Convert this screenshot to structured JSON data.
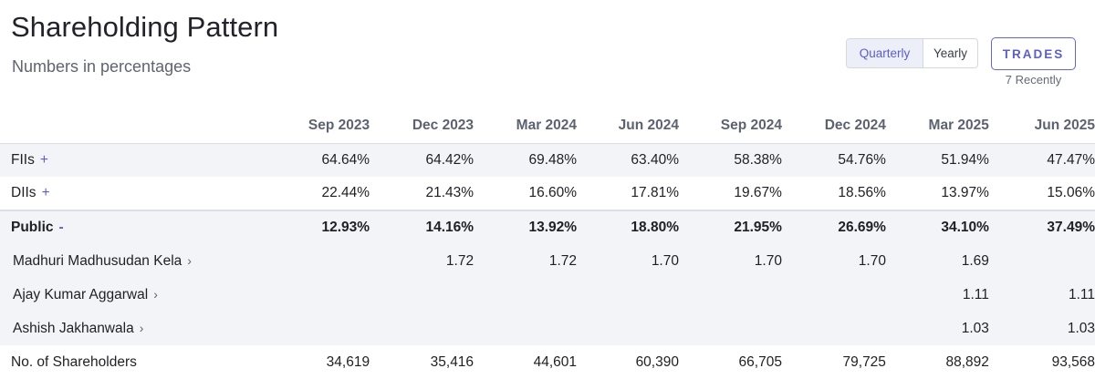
{
  "header": {
    "title": "Shareholding Pattern",
    "subtitle": "Numbers in percentages"
  },
  "controls": {
    "toggle": {
      "quarterly": "Quarterly",
      "yearly": "Yearly",
      "selected": "Quarterly"
    },
    "trades_label": "TRADES",
    "trades_sub": "7 Recently"
  },
  "table": {
    "columns": [
      "Sep 2023",
      "Dec 2023",
      "Mar 2024",
      "Jun 2024",
      "Sep 2024",
      "Dec 2024",
      "Mar 2025",
      "Jun 2025"
    ],
    "rows": [
      {
        "label": "FIIs",
        "toggle": "+",
        "values": [
          "64.64%",
          "64.42%",
          "69.48%",
          "63.40%",
          "58.38%",
          "54.76%",
          "51.94%",
          "47.47%"
        ]
      },
      {
        "label": "DIIs",
        "toggle": "+",
        "values": [
          "22.44%",
          "21.43%",
          "16.60%",
          "17.81%",
          "19.67%",
          "18.56%",
          "13.97%",
          "15.06%"
        ]
      },
      {
        "label": "Public",
        "toggle": "-",
        "values": [
          "12.93%",
          "14.16%",
          "13.92%",
          "18.80%",
          "21.95%",
          "26.69%",
          "34.10%",
          "37.49%"
        ]
      },
      {
        "label": "Madhuri Madhusudan Kela",
        "chevron": "›",
        "values": [
          "",
          "1.72",
          "1.72",
          "1.70",
          "1.70",
          "1.70",
          "1.69",
          ""
        ]
      },
      {
        "label": "Ajay Kumar Aggarwal",
        "chevron": "›",
        "values": [
          "",
          "",
          "",
          "",
          "",
          "",
          "1.11",
          "1.11"
        ]
      },
      {
        "label": "Ashish Jakhanwala",
        "chevron": "›",
        "values": [
          "",
          "",
          "",
          "",
          "",
          "",
          "1.03",
          "1.03"
        ]
      },
      {
        "label": "No. of Shareholders",
        "values": [
          "34,619",
          "35,416",
          "44,601",
          "60,390",
          "66,705",
          "79,725",
          "88,892",
          "93,568"
        ]
      }
    ]
  }
}
